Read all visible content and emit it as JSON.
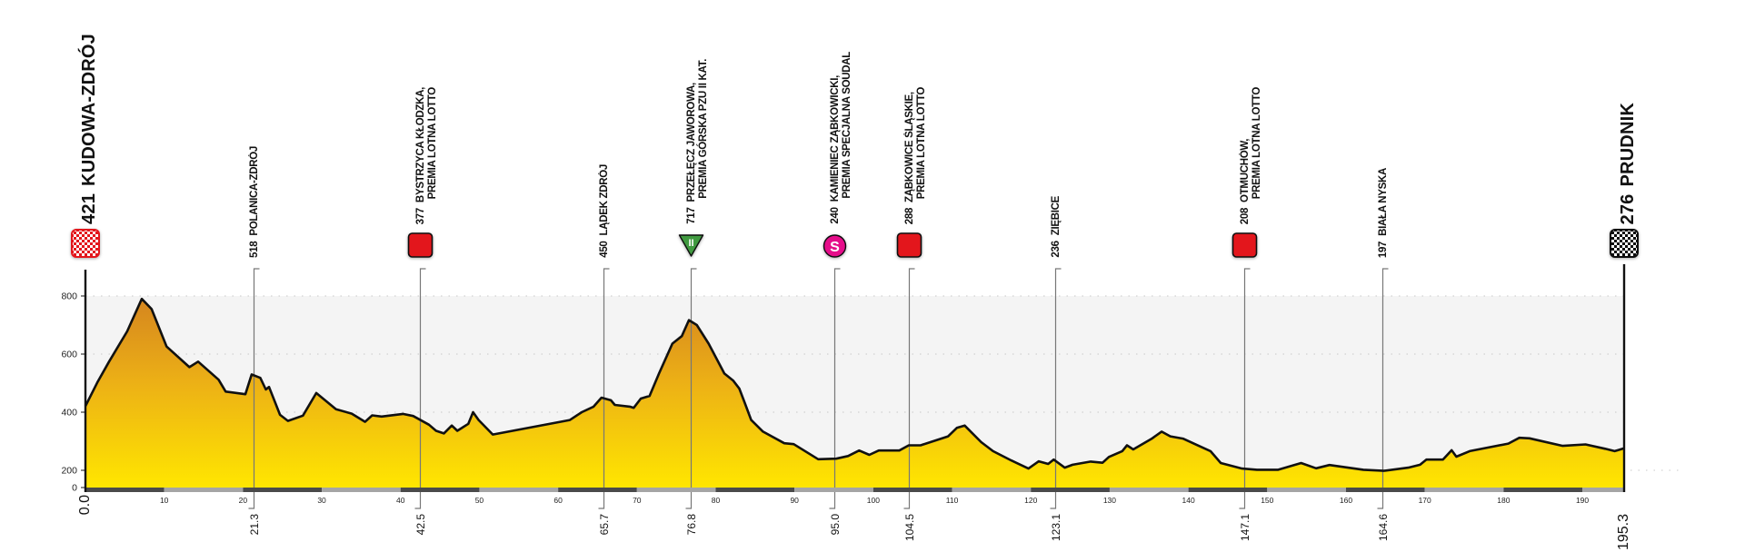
{
  "chart_data": {
    "type": "area",
    "xlim": [
      0,
      195.3
    ],
    "ylim": [
      0,
      800
    ],
    "grid": true,
    "y_ticks": [
      "800",
      "600",
      "400",
      "200",
      "0"
    ],
    "x_ticks": [
      "10",
      "20",
      "30",
      "40",
      "50",
      "60",
      "70",
      "80",
      "90",
      "100",
      "110",
      "120",
      "130",
      "140",
      "150",
      "160",
      "170",
      "180",
      "190"
    ],
    "fill_colors": {
      "top": "#d4841f",
      "bottom": "#ffe600"
    },
    "profile": [
      [
        0,
        421
      ],
      [
        1.5,
        502
      ],
      [
        3,
        574
      ],
      [
        5.3,
        678
      ],
      [
        7.15,
        790
      ],
      [
        8.4,
        755
      ],
      [
        10.3,
        626
      ],
      [
        13.2,
        555
      ],
      [
        14.3,
        574
      ],
      [
        16.9,
        512
      ],
      [
        17.8,
        471
      ],
      [
        20.3,
        462
      ],
      [
        21.1,
        530
      ],
      [
        22.2,
        518
      ],
      [
        22.9,
        478
      ],
      [
        23.3,
        487
      ],
      [
        24.7,
        391
      ],
      [
        25.7,
        370
      ],
      [
        27.6,
        388
      ],
      [
        29.3,
        466
      ],
      [
        31.8,
        410
      ],
      [
        33.8,
        395
      ],
      [
        35.5,
        367
      ],
      [
        36.4,
        389
      ],
      [
        37.6,
        385
      ],
      [
        40.3,
        394
      ],
      [
        41.6,
        387
      ],
      [
        43.6,
        357
      ],
      [
        44.5,
        336
      ],
      [
        45.5,
        327
      ],
      [
        46.5,
        354
      ],
      [
        47.2,
        336
      ],
      [
        48.6,
        360
      ],
      [
        49.2,
        400
      ],
      [
        49.9,
        373
      ],
      [
        51.7,
        323
      ],
      [
        61.5,
        373
      ],
      [
        63,
        400
      ],
      [
        64.5,
        419
      ],
      [
        65.5,
        450
      ],
      [
        66.7,
        441
      ],
      [
        67.2,
        425
      ],
      [
        69.1,
        419
      ],
      [
        69.6,
        415
      ],
      [
        70.5,
        447
      ],
      [
        71.6,
        456
      ],
      [
        72.8,
        533
      ],
      [
        74.5,
        636
      ],
      [
        75.7,
        662
      ],
      [
        76.6,
        717
      ],
      [
        77.6,
        700
      ],
      [
        79.1,
        636
      ],
      [
        81.1,
        533
      ],
      [
        82.2,
        509
      ],
      [
        83,
        481
      ],
      [
        83.7,
        431
      ],
      [
        84.5,
        373
      ],
      [
        86,
        333
      ],
      [
        88.7,
        293
      ],
      [
        89.9,
        290
      ],
      [
        93,
        238
      ],
      [
        95.3,
        240
      ],
      [
        96.8,
        249
      ],
      [
        98.2,
        268
      ],
      [
        99.5,
        253
      ],
      [
        100.7,
        268
      ],
      [
        103.3,
        268
      ],
      [
        104.5,
        286
      ],
      [
        106,
        286
      ],
      [
        109.5,
        317
      ],
      [
        110.6,
        346
      ],
      [
        111.6,
        354
      ],
      [
        113.7,
        297
      ],
      [
        115.2,
        266
      ],
      [
        117.5,
        234
      ],
      [
        119.7,
        206
      ],
      [
        121,
        231
      ],
      [
        122.2,
        222
      ],
      [
        122.9,
        237
      ],
      [
        124.3,
        209
      ],
      [
        125.3,
        219
      ],
      [
        127.6,
        230
      ],
      [
        129.1,
        226
      ],
      [
        129.9,
        246
      ],
      [
        131.6,
        266
      ],
      [
        132.2,
        286
      ],
      [
        133,
        272
      ],
      [
        135.3,
        308
      ],
      [
        136.6,
        333
      ],
      [
        137.7,
        317
      ],
      [
        139.3,
        309
      ],
      [
        141,
        288
      ],
      [
        142.8,
        266
      ],
      [
        144.1,
        225
      ],
      [
        146.8,
        206
      ],
      [
        148.7,
        202
      ],
      [
        151.4,
        202
      ],
      [
        154.3,
        225
      ],
      [
        156.2,
        207
      ],
      [
        157.9,
        218
      ],
      [
        162.2,
        202
      ],
      [
        164.8,
        198
      ],
      [
        167.9,
        209
      ],
      [
        169.4,
        219
      ],
      [
        170.2,
        237
      ],
      [
        172.3,
        237
      ],
      [
        173.4,
        269
      ],
      [
        174,
        247
      ],
      [
        175.7,
        266
      ],
      [
        180.6,
        292
      ],
      [
        182,
        312
      ],
      [
        183.3,
        310
      ],
      [
        187.5,
        284
      ],
      [
        190.4,
        289
      ],
      [
        192.9,
        274
      ],
      [
        194.1,
        266
      ],
      [
        195.3,
        276
      ]
    ],
    "start": {
      "km": 0.0,
      "km_label": "0.0",
      "elev": "421",
      "name": "KUDOWA-ZDRÓJ",
      "icon": "start-flag-icon",
      "color": "#e3161e"
    },
    "finish": {
      "km": 195.3,
      "km_label": "195.3",
      "elev": "276",
      "name": "PRUDNIK",
      "icon": "finish-flag-icon",
      "color": "#111111"
    },
    "waypoints": [
      {
        "km": 21.3,
        "km_label": "21.3",
        "elev": "518",
        "name": "POLANICA-ZDRÓJ",
        "sub": "",
        "icon": ""
      },
      {
        "km": 42.5,
        "km_label": "42.5",
        "elev": "377",
        "name": "BYSTRZYCA KŁODZKA,",
        "sub": "PREMIA LOTNA LOTTO",
        "icon": "sprint"
      },
      {
        "km": 65.7,
        "km_label": "65.7",
        "elev": "450",
        "name": "LĄDEK ZDRÓJ",
        "sub": "",
        "icon": ""
      },
      {
        "km": 76.8,
        "km_label": "76.8",
        "elev": "717",
        "name": "PRZEŁĘCZ JAWOROWA,",
        "sub": "PREMIA GÓRSKA PZU II KAT.",
        "icon": "mountain",
        "icon_text": "II"
      },
      {
        "km": 95.0,
        "km_label": "95.0",
        "elev": "240",
        "name": "KAMIENIEC ZĄBKOWICKI,",
        "sub": "PREMIA SPECJALNA SOUDAL",
        "icon": "special",
        "icon_text": "S"
      },
      {
        "km": 104.5,
        "km_label": "104.5",
        "elev": "288",
        "name": "ZĄBKOWICE ŚLĄSKIE,",
        "sub": "PREMIA LOTNA LOTTO",
        "icon": "sprint"
      },
      {
        "km": 123.1,
        "km_label": "123.1",
        "elev": "236",
        "name": "ZIĘBICE",
        "sub": "",
        "icon": ""
      },
      {
        "km": 147.1,
        "km_label": "147.1",
        "elev": "208",
        "name": "OTMUCHÓW,",
        "sub": "PREMIA LOTNA LOTTO",
        "icon": "sprint"
      },
      {
        "km": 164.6,
        "km_label": "164.6",
        "elev": "197",
        "name": "BIAŁA NYSKA",
        "sub": "",
        "icon": ""
      }
    ],
    "icon_colors": {
      "sprint": "#e3161e",
      "mountain": "#3f9a3f",
      "special": "#e5108a"
    }
  }
}
